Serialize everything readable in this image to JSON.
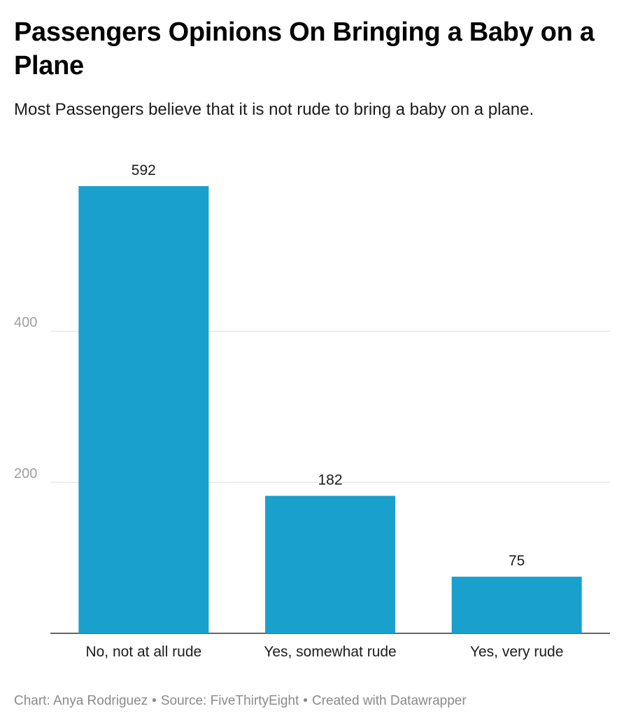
{
  "header": {
    "title": "Passengers Opinions On Bringing a Baby on a Plane",
    "subtitle": "Most Passengers believe that it is not rude to bring a baby on a plane."
  },
  "chart_data": {
    "type": "bar",
    "categories": [
      "No, not at all rude",
      "Yes, somewhat rude",
      "Yes, very rude"
    ],
    "values": [
      592,
      182,
      75
    ],
    "value_labels": [
      "592",
      "182",
      "75"
    ],
    "y_ticks": [
      200,
      400
    ],
    "y_tick_labels": [
      "200",
      "400"
    ],
    "ylim": [
      0,
      592
    ],
    "grid": true,
    "bar_color": "#1aa0cc",
    "xlabel": "",
    "ylabel": ""
  },
  "footer": {
    "chart_credit": "Chart: Anya Rodriguez",
    "source": "Source: FiveThirtyEight",
    "tool": "Created with Datawrapper",
    "separator": "•"
  }
}
